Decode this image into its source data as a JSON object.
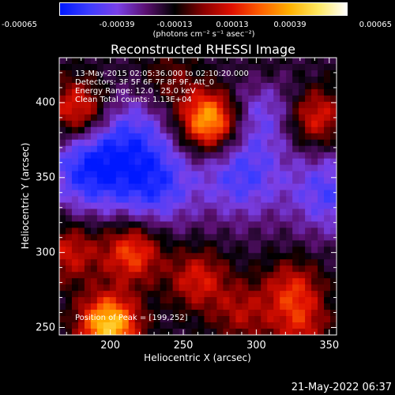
{
  "colorbar": {
    "tick_labels": [
      "-0.00065",
      "-0.00039",
      "-0.00013",
      "0.00013",
      "0.00039",
      "0.00065"
    ],
    "units_label": "(photons cm⁻² s⁻¹ asec⁻²)",
    "colors": [
      "#0018ff",
      "#3c3cff",
      "#7a40e8",
      "#5a1070",
      "#000000",
      "#8a0000",
      "#e01000",
      "#ff6000",
      "#ffb000",
      "#ffe860",
      "#ffffff"
    ]
  },
  "title": "Reconstructed RHESSI Image",
  "annotations": [
    "13-May-2015 02:05:36.000 to 02:10:20.000",
    "Detectors: 3F 5F 6F 7F 8F 9F, Att_0",
    "Energy Range: 12.0 - 25.0 keV",
    "Clean      Total counts: 1.13E+04"
  ],
  "peak_annotation": "Position of Peak = [199,252]",
  "footer_timestamp": "21-May-2022 06:37",
  "chart_data": {
    "type": "heatmap",
    "xlabel": "Heliocentric X (arcsec)",
    "ylabel": "Heliocentric Y (arcsec)",
    "xlim": [
      165,
      355
    ],
    "ylim": [
      245,
      430
    ],
    "x_ticks": [
      200,
      250,
      300,
      350
    ],
    "y_ticks": [
      250,
      300,
      350,
      400
    ],
    "value_range": [
      -0.00065,
      0.00065
    ],
    "peak_position": [
      199,
      252
    ],
    "sources": [
      {
        "x": 199,
        "y": 252,
        "value": 0.00065
      },
      {
        "x": 268,
        "y": 388,
        "value": 0.00062
      },
      {
        "x": 215,
        "y": 300,
        "value": 0.0004
      },
      {
        "x": 178,
        "y": 395,
        "value": 0.00038
      },
      {
        "x": 340,
        "y": 390,
        "value": 0.00035
      },
      {
        "x": 325,
        "y": 275,
        "value": 0.0003
      },
      {
        "x": 260,
        "y": 282,
        "value": 0.0003
      },
      {
        "x": 172,
        "y": 300,
        "value": 0.00028
      },
      {
        "x": 330,
        "y": 250,
        "value": 0.00025
      },
      {
        "x": 290,
        "y": 260,
        "value": 0.00022
      },
      {
        "x": 240,
        "y": 415,
        "value": 0.00015
      },
      {
        "x": 305,
        "y": 420,
        "value": 0.0001
      }
    ],
    "negative_sources": [
      {
        "x": 185,
        "y": 355,
        "value": -0.0004
      },
      {
        "x": 230,
        "y": 345,
        "value": -0.00035
      },
      {
        "x": 290,
        "y": 350,
        "value": -0.0003
      },
      {
        "x": 305,
        "y": 395,
        "value": -0.00025
      },
      {
        "x": 215,
        "y": 380,
        "value": -0.00025
      },
      {
        "x": 350,
        "y": 340,
        "value": -0.0003
      }
    ]
  }
}
